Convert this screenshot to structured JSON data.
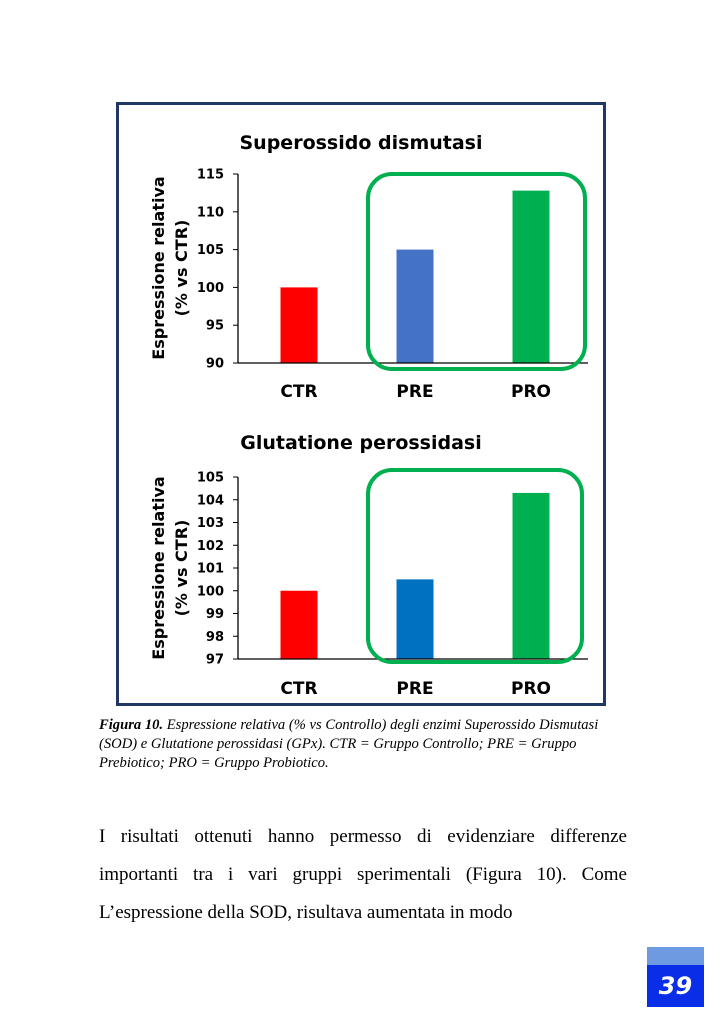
{
  "chart_data": [
    {
      "type": "bar",
      "title": "Superossido dismutasi",
      "ylabel_line1": "Espressione relativa",
      "ylabel_line2": "(% vs CTR)",
      "categories": [
        "CTR",
        "PRE",
        "PRO"
      ],
      "values": [
        100,
        105,
        112.8
      ],
      "ylim": [
        90,
        115
      ],
      "yticks": [
        90,
        95,
        100,
        105,
        110,
        115
      ],
      "colors": [
        "#ff0000",
        "#4472c4",
        "#00b050"
      ],
      "highlight_categories": [
        "PRE",
        "PRO"
      ],
      "highlight_color": "#00b050",
      "grid": false,
      "legend": "none"
    },
    {
      "type": "bar",
      "title": "Glutatione perossidasi",
      "ylabel_line1": "Espressione relativa",
      "ylabel_line2": "(% vs CTR)",
      "categories": [
        "CTR",
        "PRE",
        "PRO"
      ],
      "values": [
        100,
        100.5,
        104.3
      ],
      "ylim": [
        97,
        105
      ],
      "yticks": [
        97,
        98,
        99,
        100,
        101,
        102,
        103,
        104,
        105
      ],
      "colors": [
        "#ff0000",
        "#0070c0",
        "#00b050"
      ],
      "highlight_categories": [
        "PRE",
        "PRO"
      ],
      "highlight_color": "#00b050",
      "grid": false,
      "legend": "none"
    }
  ],
  "caption": {
    "label": "Figura 10.",
    "text": " Espressione relativa (% vs Controllo) degli enzimi Superossido Dismutasi (SOD) e Glutatione perossidasi (GPx). CTR = Gruppo Controllo; PRE = Gruppo Prebiotico; PRO = Gruppo Probiotico."
  },
  "body_text": "I risultati ottenuti hanno permesso di evidenziare differenze importanti tra i vari gruppi sperimentali (Figura 10). Come L’espressione della SOD, risultava aumentata in modo",
  "page_number": "39"
}
